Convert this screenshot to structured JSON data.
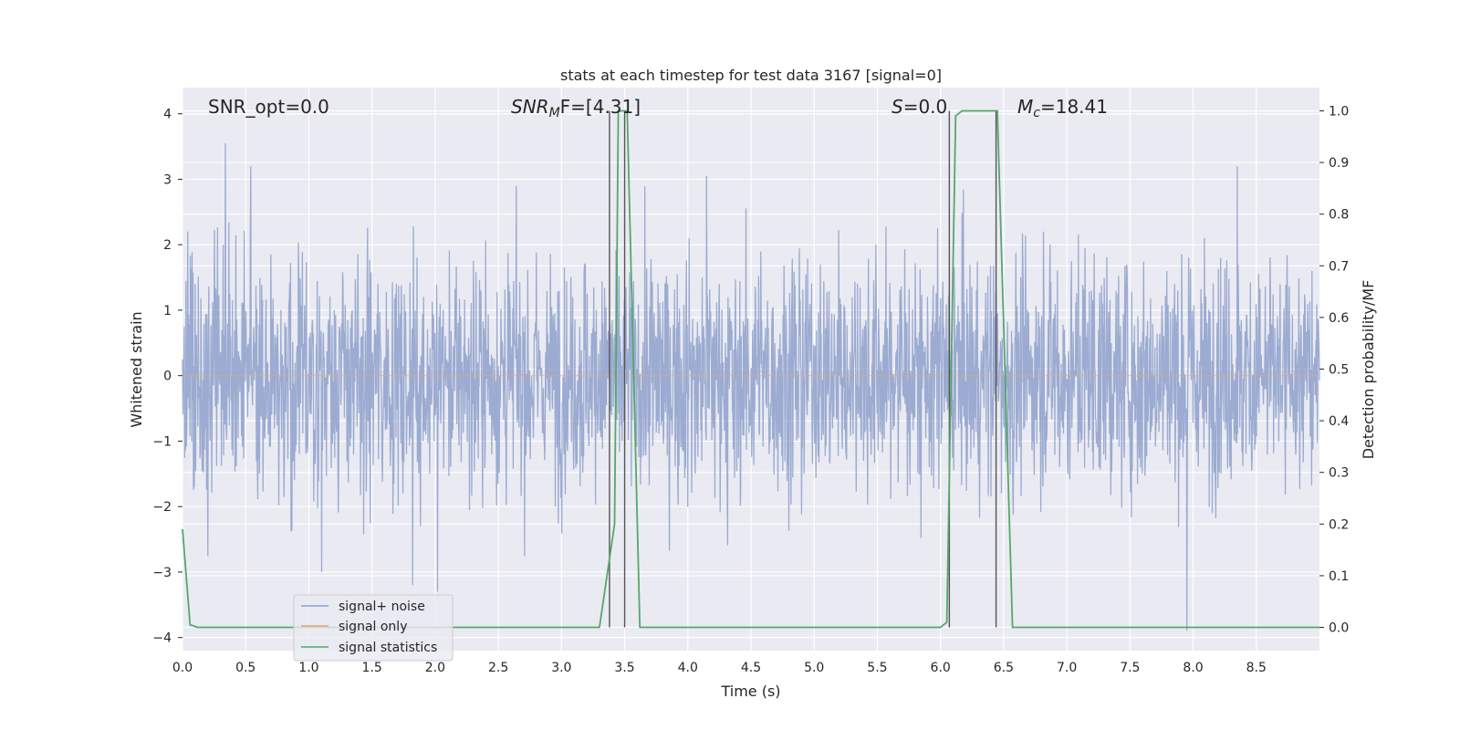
{
  "chart_data": {
    "type": "line",
    "title": "stats at each timestep for test data 3167 [signal=0]",
    "xlabel": "Time (s)",
    "ylabel_left": "Whitened strain",
    "ylabel_right": "Detection probability/MF",
    "xlim": [
      0.0,
      9.0
    ],
    "ylim_left": [
      -4.2,
      4.4
    ],
    "ylim_right": [
      -0.045,
      1.045
    ],
    "x_ticks": [
      "0.0",
      "0.5",
      "1.0",
      "1.5",
      "2.0",
      "2.5",
      "3.0",
      "3.5",
      "4.0",
      "4.5",
      "5.0",
      "5.5",
      "6.0",
      "6.5",
      "7.0",
      "7.5",
      "8.0",
      "8.5"
    ],
    "y_ticks_left": [
      "−4",
      "−3",
      "−2",
      "−1",
      "0",
      "1",
      "2",
      "3",
      "4"
    ],
    "y_ticks_right": [
      "0.0",
      "0.1",
      "0.2",
      "0.3",
      "0.4",
      "0.5",
      "0.6",
      "0.7",
      "0.8",
      "0.9",
      "1.0"
    ],
    "grid": true,
    "legend_placement": "lower-left",
    "annotations": {
      "snr_opt": "SNR_opt=0.0",
      "snr_mf_main": "SNR",
      "snr_mf_sub": "M",
      "snr_mf_rest": "F=[4.31]",
      "s_main": "S",
      "s_rest": "=0.0",
      "mc_main": "M",
      "mc_sub": "c",
      "mc_rest": "=18.41"
    },
    "series": [
      {
        "name": "signal+ noise",
        "color": "#8da0cb",
        "axis": "left",
        "description": "whitened strain noise trace, roughly ±2.5 envelope",
        "peaks": [
          {
            "x": 0.34,
            "y": 3.55
          },
          {
            "x": 0.54,
            "y": 3.2
          },
          {
            "x": 4.15,
            "y": 3.05
          },
          {
            "x": 8.35,
            "y": 3.2
          },
          {
            "x": 1.82,
            "y": -3.2
          },
          {
            "x": 2.02,
            "y": -3.3
          },
          {
            "x": 7.95,
            "y": -3.9
          }
        ]
      },
      {
        "name": "signal only",
        "color": "#e5a37a",
        "axis": "left",
        "x": [
          0.0,
          9.0
        ],
        "y": [
          0.0,
          0.0
        ]
      },
      {
        "name": "signal statistics",
        "color": "#55a868",
        "axis": "right",
        "x": [
          0.0,
          0.06,
          0.12,
          3.3,
          3.42,
          3.45,
          3.52,
          3.56,
          3.62,
          6.0,
          6.05,
          6.12,
          6.17,
          6.45,
          6.57,
          9.0
        ],
        "y": [
          0.19,
          0.005,
          0.0,
          0.0,
          0.2,
          1.0,
          1.0,
          0.6,
          0.0,
          0.0,
          0.01,
          0.99,
          1.0,
          1.0,
          0.0,
          0.0
        ]
      }
    ],
    "vertical_lines": {
      "color": "#555555",
      "x": [
        3.38,
        3.5,
        6.07,
        6.44
      ],
      "y_range_right": [
        0.0,
        1.0
      ]
    },
    "colors": {
      "plot_background": "#eaeaf2",
      "grid": "#ffffff",
      "text": "#262626"
    }
  }
}
